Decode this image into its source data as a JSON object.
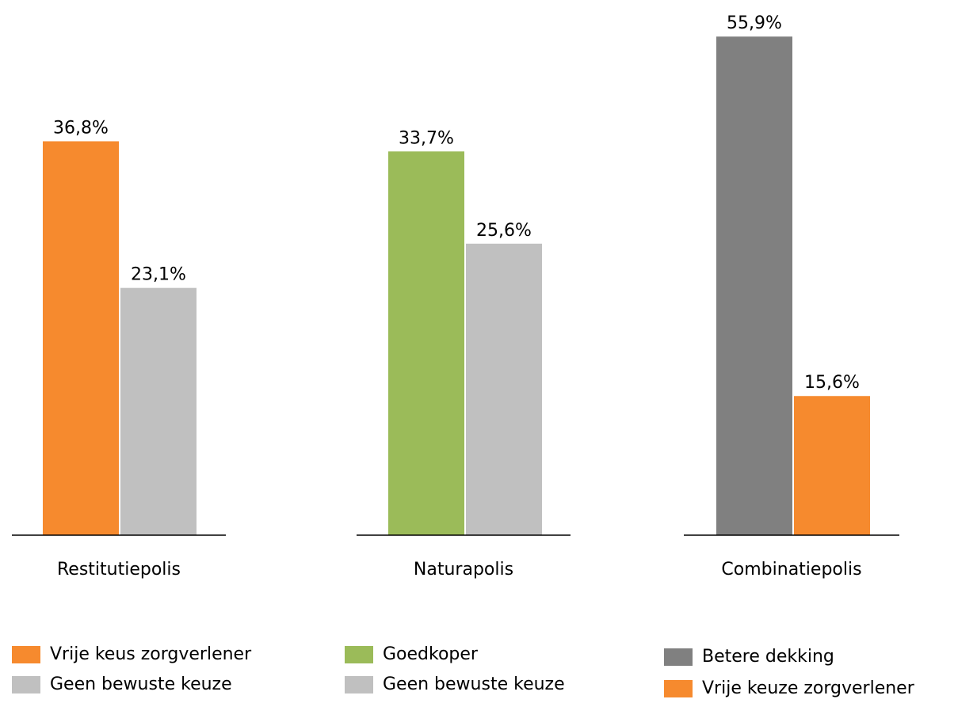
{
  "chart_data": [
    {
      "type": "bar",
      "categories": [
        "Restitutiepolis"
      ],
      "ylim": [
        0,
        50
      ],
      "series": [
        {
          "name": "Vrije keus zorgverlener",
          "color": "#f68a2e",
          "values": [
            36.8
          ],
          "value_labels": [
            "36,8%"
          ]
        },
        {
          "name": "Geen bewuste keuze",
          "color": "#c0c0c0",
          "values": [
            23.1
          ],
          "value_labels": [
            "23,1%"
          ]
        }
      ]
    },
    {
      "type": "bar",
      "categories": [
        "Naturapolis"
      ],
      "ylim": [
        0,
        47
      ],
      "series": [
        {
          "name": "Goedkoper",
          "color": "#9bbb59",
          "values": [
            33.7
          ],
          "value_labels": [
            "33,7%"
          ]
        },
        {
          "name": "Geen bewuste keuze",
          "color": "#c0c0c0",
          "values": [
            25.6
          ],
          "value_labels": [
            "25,6%"
          ]
        }
      ]
    },
    {
      "type": "bar",
      "categories": [
        "Combinatiepolis"
      ],
      "ylim": [
        0,
        60
      ],
      "series": [
        {
          "name": "Betere dekking",
          "color": "#808080",
          "values": [
            55.9
          ],
          "value_labels": [
            "55,9%"
          ]
        },
        {
          "name": "Vrije keuze zorgverlener",
          "color": "#f68a2e",
          "values": [
            15.6
          ],
          "value_labels": [
            "15,6%"
          ]
        }
      ]
    }
  ]
}
